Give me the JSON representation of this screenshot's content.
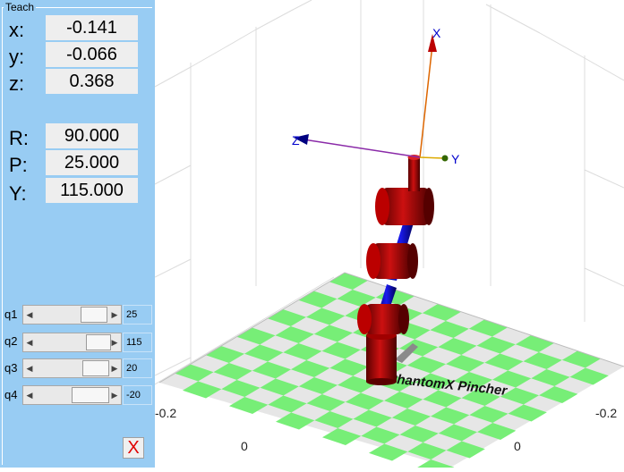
{
  "teach": {
    "title": "Teach",
    "position": [
      {
        "label": "x:",
        "value": "-0.141"
      },
      {
        "label": "y:",
        "value": "-0.066"
      },
      {
        "label": "z:",
        "value": "0.368"
      }
    ],
    "orientation": [
      {
        "label": "R:",
        "value": "90.000"
      },
      {
        "label": "P:",
        "value": "25.000"
      },
      {
        "label": "Y:",
        "value": "115.000"
      }
    ],
    "joints": [
      {
        "label": "q1",
        "value": "25"
      },
      {
        "label": "q2",
        "value": "115"
      },
      {
        "label": "q3",
        "value": "20"
      },
      {
        "label": "q4",
        "value": "-20"
      }
    ],
    "close_label": "X"
  },
  "plot": {
    "robot_name": "PhantomX Pincher",
    "frame_labels": {
      "x": "X",
      "y": "Y",
      "z": "Z"
    },
    "ticks": {
      "left_a": "-0.2",
      "left_b": "0",
      "right_a": "-0.2",
      "right_b": "0"
    },
    "colors": {
      "panel": "#98ccf3",
      "link": "#0000cc",
      "joint": "#cc0000",
      "floor_green": "#77ee77",
      "floor_gray": "#e6e6e6"
    }
  }
}
